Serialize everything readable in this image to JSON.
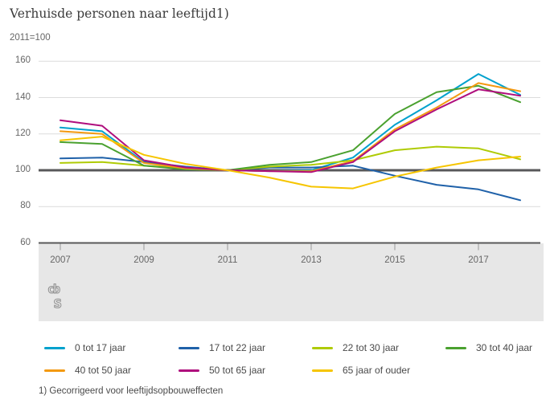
{
  "header": {
    "title": "Verhuisde personen naar leeftijd1)",
    "subtitle": "2011=100"
  },
  "footnote": "1) Gecorrigeerd voor leeftijdsopbouweffecten",
  "logo": {
    "top_text": "cb",
    "bottom_text": "s"
  },
  "colors": {
    "grid": "#dcdcdc",
    "baseline": "#58585a",
    "axis": "#58585a",
    "tick": "#9a9a9a",
    "band": "#e7e7e7",
    "tick_text": "#666666"
  },
  "chart_data": {
    "type": "line",
    "title": "Verhuisde personen naar leeftijd1)",
    "ylabel": "2011=100",
    "xlabel": "",
    "grid": true,
    "legend_position": "bottom",
    "ylim": [
      60,
      160
    ],
    "baseline": 100,
    "y_ticks": [
      160,
      140,
      120,
      100,
      80,
      60
    ],
    "x_ticks": [
      2007,
      2009,
      2011,
      2013,
      2015,
      2017
    ],
    "x": [
      2007,
      2008,
      2009,
      2010,
      2011,
      2012,
      2013,
      2014,
      2015,
      2016,
      2017,
      2018
    ],
    "series": [
      {
        "name": "0 tot 17 jaar",
        "color": "#00a1cd",
        "values": [
          123.5,
          121.5,
          104.5,
          101.5,
          100,
          99.5,
          100,
          107,
          125,
          138.5,
          153,
          141.5
        ]
      },
      {
        "name": "17 tot 22 jaar",
        "color": "#1f61a9",
        "values": [
          106.5,
          107,
          104.5,
          102,
          100,
          101.5,
          101.5,
          102.5,
          97,
          92,
          89.5,
          83.5
        ]
      },
      {
        "name": "22 tot 30 jaar",
        "color": "#afcb05",
        "values": [
          104,
          104.5,
          102.5,
          101,
          100,
          102,
          103,
          105.5,
          111,
          113,
          112,
          106
        ]
      },
      {
        "name": "30 tot 40 jaar",
        "color": "#4aa12f",
        "values": [
          115.5,
          114.5,
          102.5,
          100.5,
          100,
          103,
          104.5,
          111,
          131,
          143,
          146.5,
          137.5
        ]
      },
      {
        "name": "40 tot 50 jaar",
        "color": "#f39911",
        "values": [
          121.5,
          120,
          104,
          101,
          100,
          99.5,
          99.5,
          105,
          122.5,
          134.5,
          148,
          143.5
        ]
      },
      {
        "name": "50 tot 65 jaar",
        "color": "#af0e7d",
        "values": [
          127.5,
          124.5,
          105.5,
          101.5,
          100,
          99.5,
          99,
          104.5,
          121.5,
          133.5,
          144.5,
          141
        ]
      },
      {
        "name": "65 jaar of ouder",
        "color": "#f6c500",
        "values": [
          116.5,
          118.5,
          108.5,
          103.5,
          100,
          96,
          91,
          90,
          96.5,
          101.5,
          105.5,
          107.5
        ]
      }
    ]
  }
}
